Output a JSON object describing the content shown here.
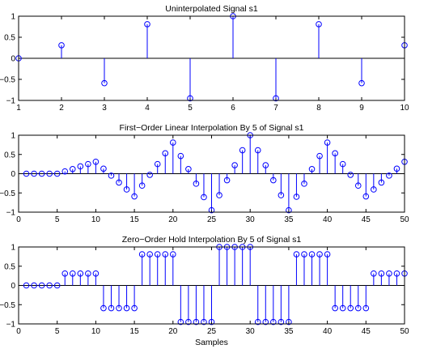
{
  "colors": {
    "stem": "#0000ff",
    "axis": "#000000",
    "background": "#ffffff"
  },
  "chart_data": [
    {
      "type": "stem",
      "title": "Uninterpolated Signal s1",
      "xlabel": "",
      "ylabel": "",
      "xlim": [
        1,
        10
      ],
      "ylim": [
        -1,
        1
      ],
      "xticks": [
        1,
        2,
        3,
        4,
        5,
        6,
        7,
        8,
        9,
        10
      ],
      "yticks": [
        -1,
        -0.5,
        0,
        0.5,
        1
      ],
      "xtick_labels": [
        "1",
        "2",
        "3",
        "4",
        "5",
        "6",
        "7",
        "8",
        "9",
        "10"
      ],
      "ytick_labels": [
        "−1",
        "−0.5",
        "0",
        "0.5",
        "1"
      ],
      "grid": false,
      "x": [
        1,
        2,
        3,
        4,
        5,
        6,
        7,
        8,
        9,
        10
      ],
      "y": [
        0,
        0.31,
        -0.59,
        0.81,
        -0.95,
        1.0,
        -0.95,
        0.81,
        -0.59,
        0.31
      ]
    },
    {
      "type": "stem",
      "title": "First−Order Linear Interpolation By 5 of Signal s1",
      "xlabel": "",
      "ylabel": "",
      "xlim": [
        0,
        50
      ],
      "ylim": [
        -1,
        1
      ],
      "xticks": [
        0,
        5,
        10,
        15,
        20,
        25,
        30,
        35,
        40,
        45,
        50
      ],
      "yticks": [
        -1,
        -0.5,
        0,
        0.5,
        1
      ],
      "xtick_labels": [
        "0",
        "5",
        "10",
        "15",
        "20",
        "25",
        "30",
        "35",
        "40",
        "45",
        "50"
      ],
      "ytick_labels": [
        "−1",
        "−0.5",
        "0",
        "0.5",
        "1"
      ],
      "grid": false,
      "x": [
        1,
        2,
        3,
        4,
        5,
        6,
        7,
        8,
        9,
        10,
        11,
        12,
        13,
        14,
        15,
        16,
        17,
        18,
        19,
        20,
        21,
        22,
        23,
        24,
        25,
        26,
        27,
        28,
        29,
        30,
        31,
        32,
        33,
        34,
        35,
        36,
        37,
        38,
        39,
        40,
        41,
        42,
        43,
        44,
        45,
        46,
        47,
        48,
        49,
        50
      ],
      "y": [
        0,
        0,
        0,
        0,
        0,
        0.06,
        0.12,
        0.19,
        0.25,
        0.31,
        0.13,
        -0.05,
        -0.23,
        -0.41,
        -0.59,
        -0.31,
        -0.03,
        0.25,
        0.53,
        0.81,
        0.46,
        0.12,
        -0.26,
        -0.61,
        -0.95,
        -0.56,
        -0.17,
        0.22,
        0.61,
        1.0,
        0.61,
        0.22,
        -0.17,
        -0.56,
        -0.95,
        -0.6,
        -0.26,
        0.12,
        0.46,
        0.81,
        0.53,
        0.25,
        -0.03,
        -0.31,
        -0.59,
        -0.41,
        -0.23,
        -0.05,
        0.13,
        0.31
      ]
    },
    {
      "type": "stem",
      "title": "Zero−Order Hold Interpolation By 5 of Signal s1",
      "xlabel": "Samples",
      "ylabel": "",
      "xlim": [
        0,
        50
      ],
      "ylim": [
        -1,
        1
      ],
      "xticks": [
        0,
        5,
        10,
        15,
        20,
        25,
        30,
        35,
        40,
        45,
        50
      ],
      "yticks": [
        -1,
        -0.5,
        0,
        0.5,
        1
      ],
      "xtick_labels": [
        "0",
        "5",
        "10",
        "15",
        "20",
        "25",
        "30",
        "35",
        "40",
        "45",
        "50"
      ],
      "ytick_labels": [
        "−1",
        "−0.5",
        "0",
        "0.5",
        "1"
      ],
      "grid": false,
      "x": [
        1,
        2,
        3,
        4,
        5,
        6,
        7,
        8,
        9,
        10,
        11,
        12,
        13,
        14,
        15,
        16,
        17,
        18,
        19,
        20,
        21,
        22,
        23,
        24,
        25,
        26,
        27,
        28,
        29,
        30,
        31,
        32,
        33,
        34,
        35,
        36,
        37,
        38,
        39,
        40,
        41,
        42,
        43,
        44,
        45,
        46,
        47,
        48,
        49,
        50
      ],
      "y": [
        0,
        0,
        0,
        0,
        0,
        0.31,
        0.31,
        0.31,
        0.31,
        0.31,
        -0.59,
        -0.59,
        -0.59,
        -0.59,
        -0.59,
        0.81,
        0.81,
        0.81,
        0.81,
        0.81,
        -0.95,
        -0.95,
        -0.95,
        -0.95,
        -0.95,
        1.0,
        1.0,
        1.0,
        1.0,
        1.0,
        -0.95,
        -0.95,
        -0.95,
        -0.95,
        -0.95,
        0.81,
        0.81,
        0.81,
        0.81,
        0.81,
        -0.59,
        -0.59,
        -0.59,
        -0.59,
        -0.59,
        0.31,
        0.31,
        0.31,
        0.31,
        0.31
      ]
    }
  ]
}
